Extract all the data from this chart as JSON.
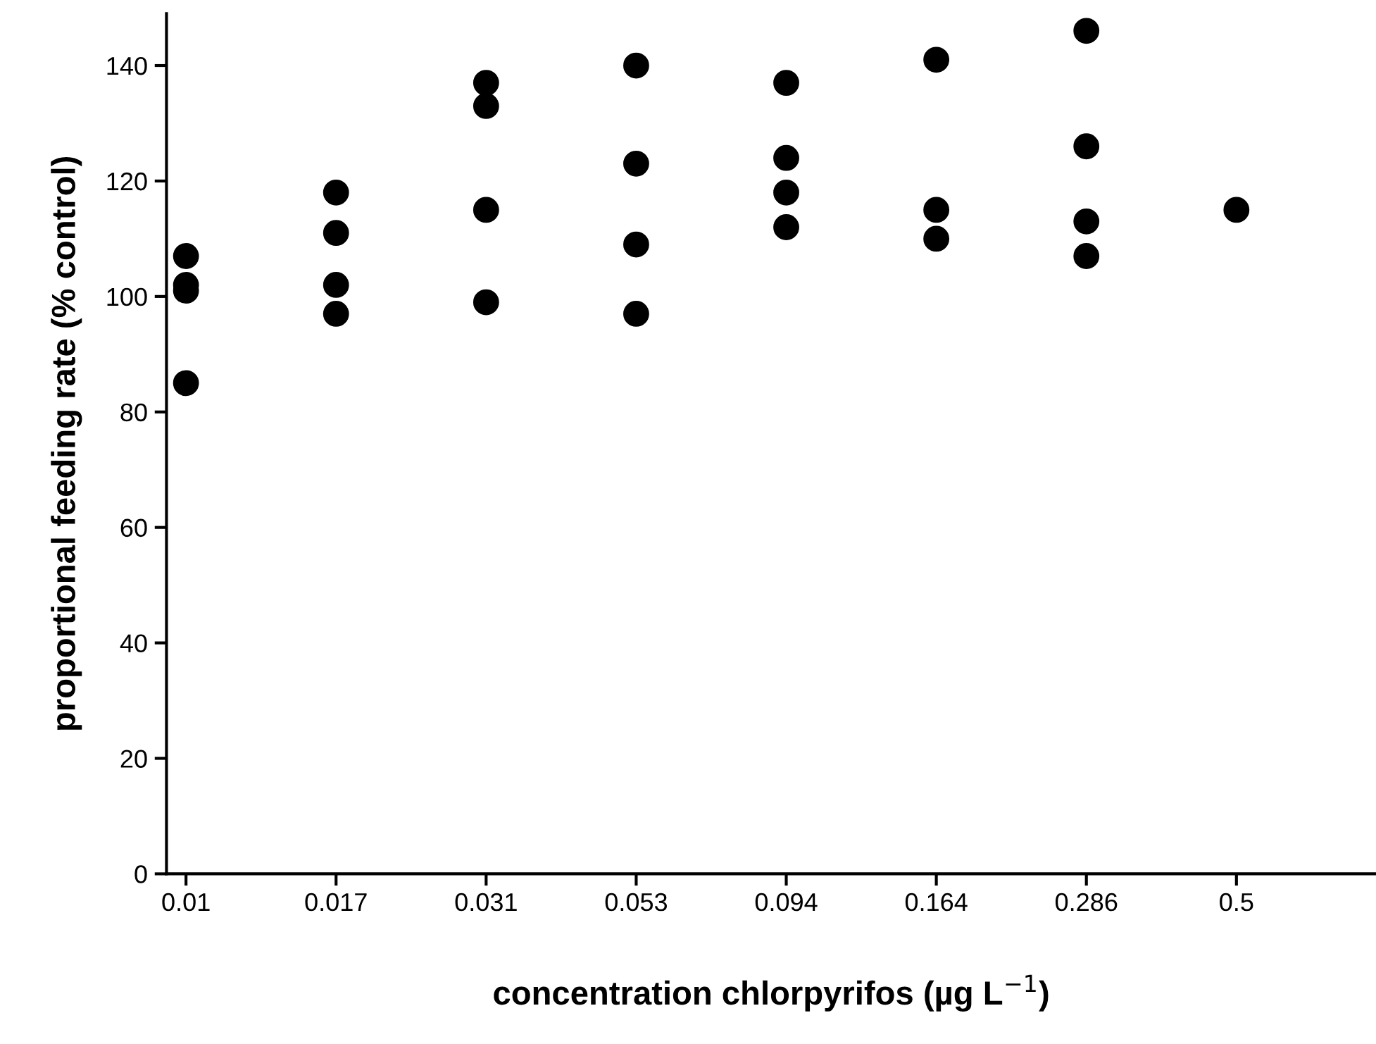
{
  "chart_data": {
    "type": "scatter",
    "xlabel": "concentration chlorpyrifos (µg L$^{−1}$)",
    "ylabel": "proportional feeding rate (% control)",
    "categories": [
      "0.01",
      "0.017",
      "0.031",
      "0.053",
      "0.094",
      "0.164",
      "0.286",
      "0.5"
    ],
    "series": [
      {
        "color": "#000000",
        "x": [
          "0.01",
          "0.01",
          "0.01",
          "0.01",
          "0.017",
          "0.017",
          "0.017",
          "0.017",
          "0.031",
          "0.031",
          "0.031",
          "0.031",
          "0.053",
          "0.053",
          "0.053",
          "0.053",
          "0.094",
          "0.094",
          "0.094",
          "0.094",
          "0.164",
          "0.164",
          "0.164",
          "0.286",
          "0.286",
          "0.286",
          "0.286",
          "0.5"
        ],
        "values": [
          107,
          102,
          101,
          85,
          118,
          111,
          102,
          97,
          137,
          133,
          115,
          99,
          140,
          123,
          109,
          97,
          137,
          124,
          118,
          112,
          141,
          115,
          110,
          146,
          126,
          113,
          107,
          115
        ]
      }
    ],
    "ylim": [
      0,
      149
    ],
    "yticks": [
      0,
      20,
      40,
      60,
      80,
      100,
      120,
      140
    ],
    "grid": false,
    "legend": false,
    "marker": "circle"
  }
}
